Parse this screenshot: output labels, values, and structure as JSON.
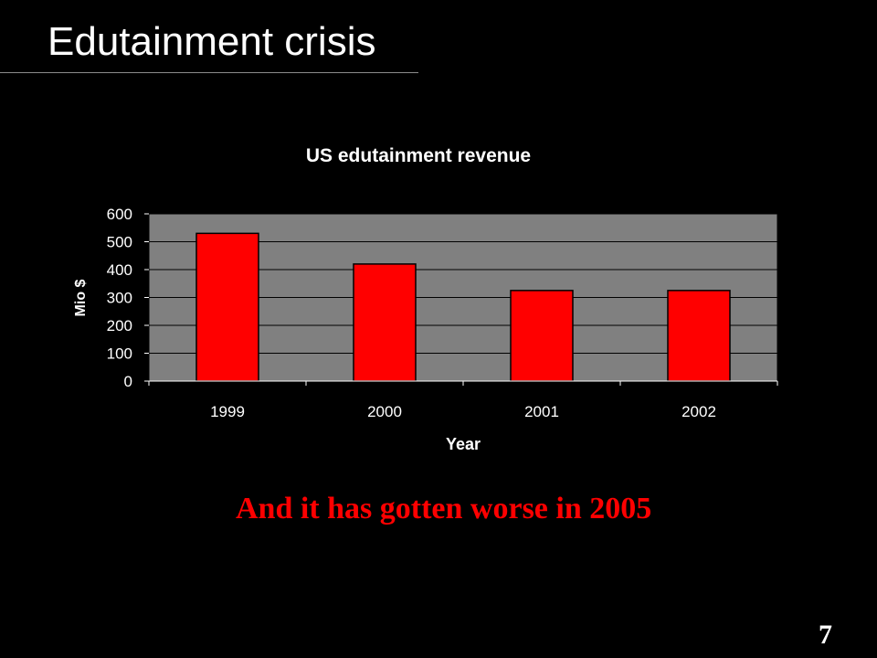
{
  "slide": {
    "title": "Edutainment crisis",
    "callout": "And it has gotten worse in 2005",
    "page_number": "7"
  },
  "colors": {
    "background": "#000000",
    "plot_area": "#808080",
    "bar": "#ff0000",
    "callout": "#ff0000"
  },
  "chart_data": {
    "type": "bar",
    "title": "US edutainment revenue",
    "xlabel": "Year",
    "ylabel": "Mio $",
    "categories": [
      "1999",
      "2000",
      "2001",
      "2002"
    ],
    "values": [
      530,
      420,
      325,
      325
    ],
    "ylim": [
      0,
      600
    ],
    "yticks": [
      0,
      100,
      200,
      300,
      400,
      500,
      600
    ],
    "grid": true,
    "legend": "none"
  }
}
